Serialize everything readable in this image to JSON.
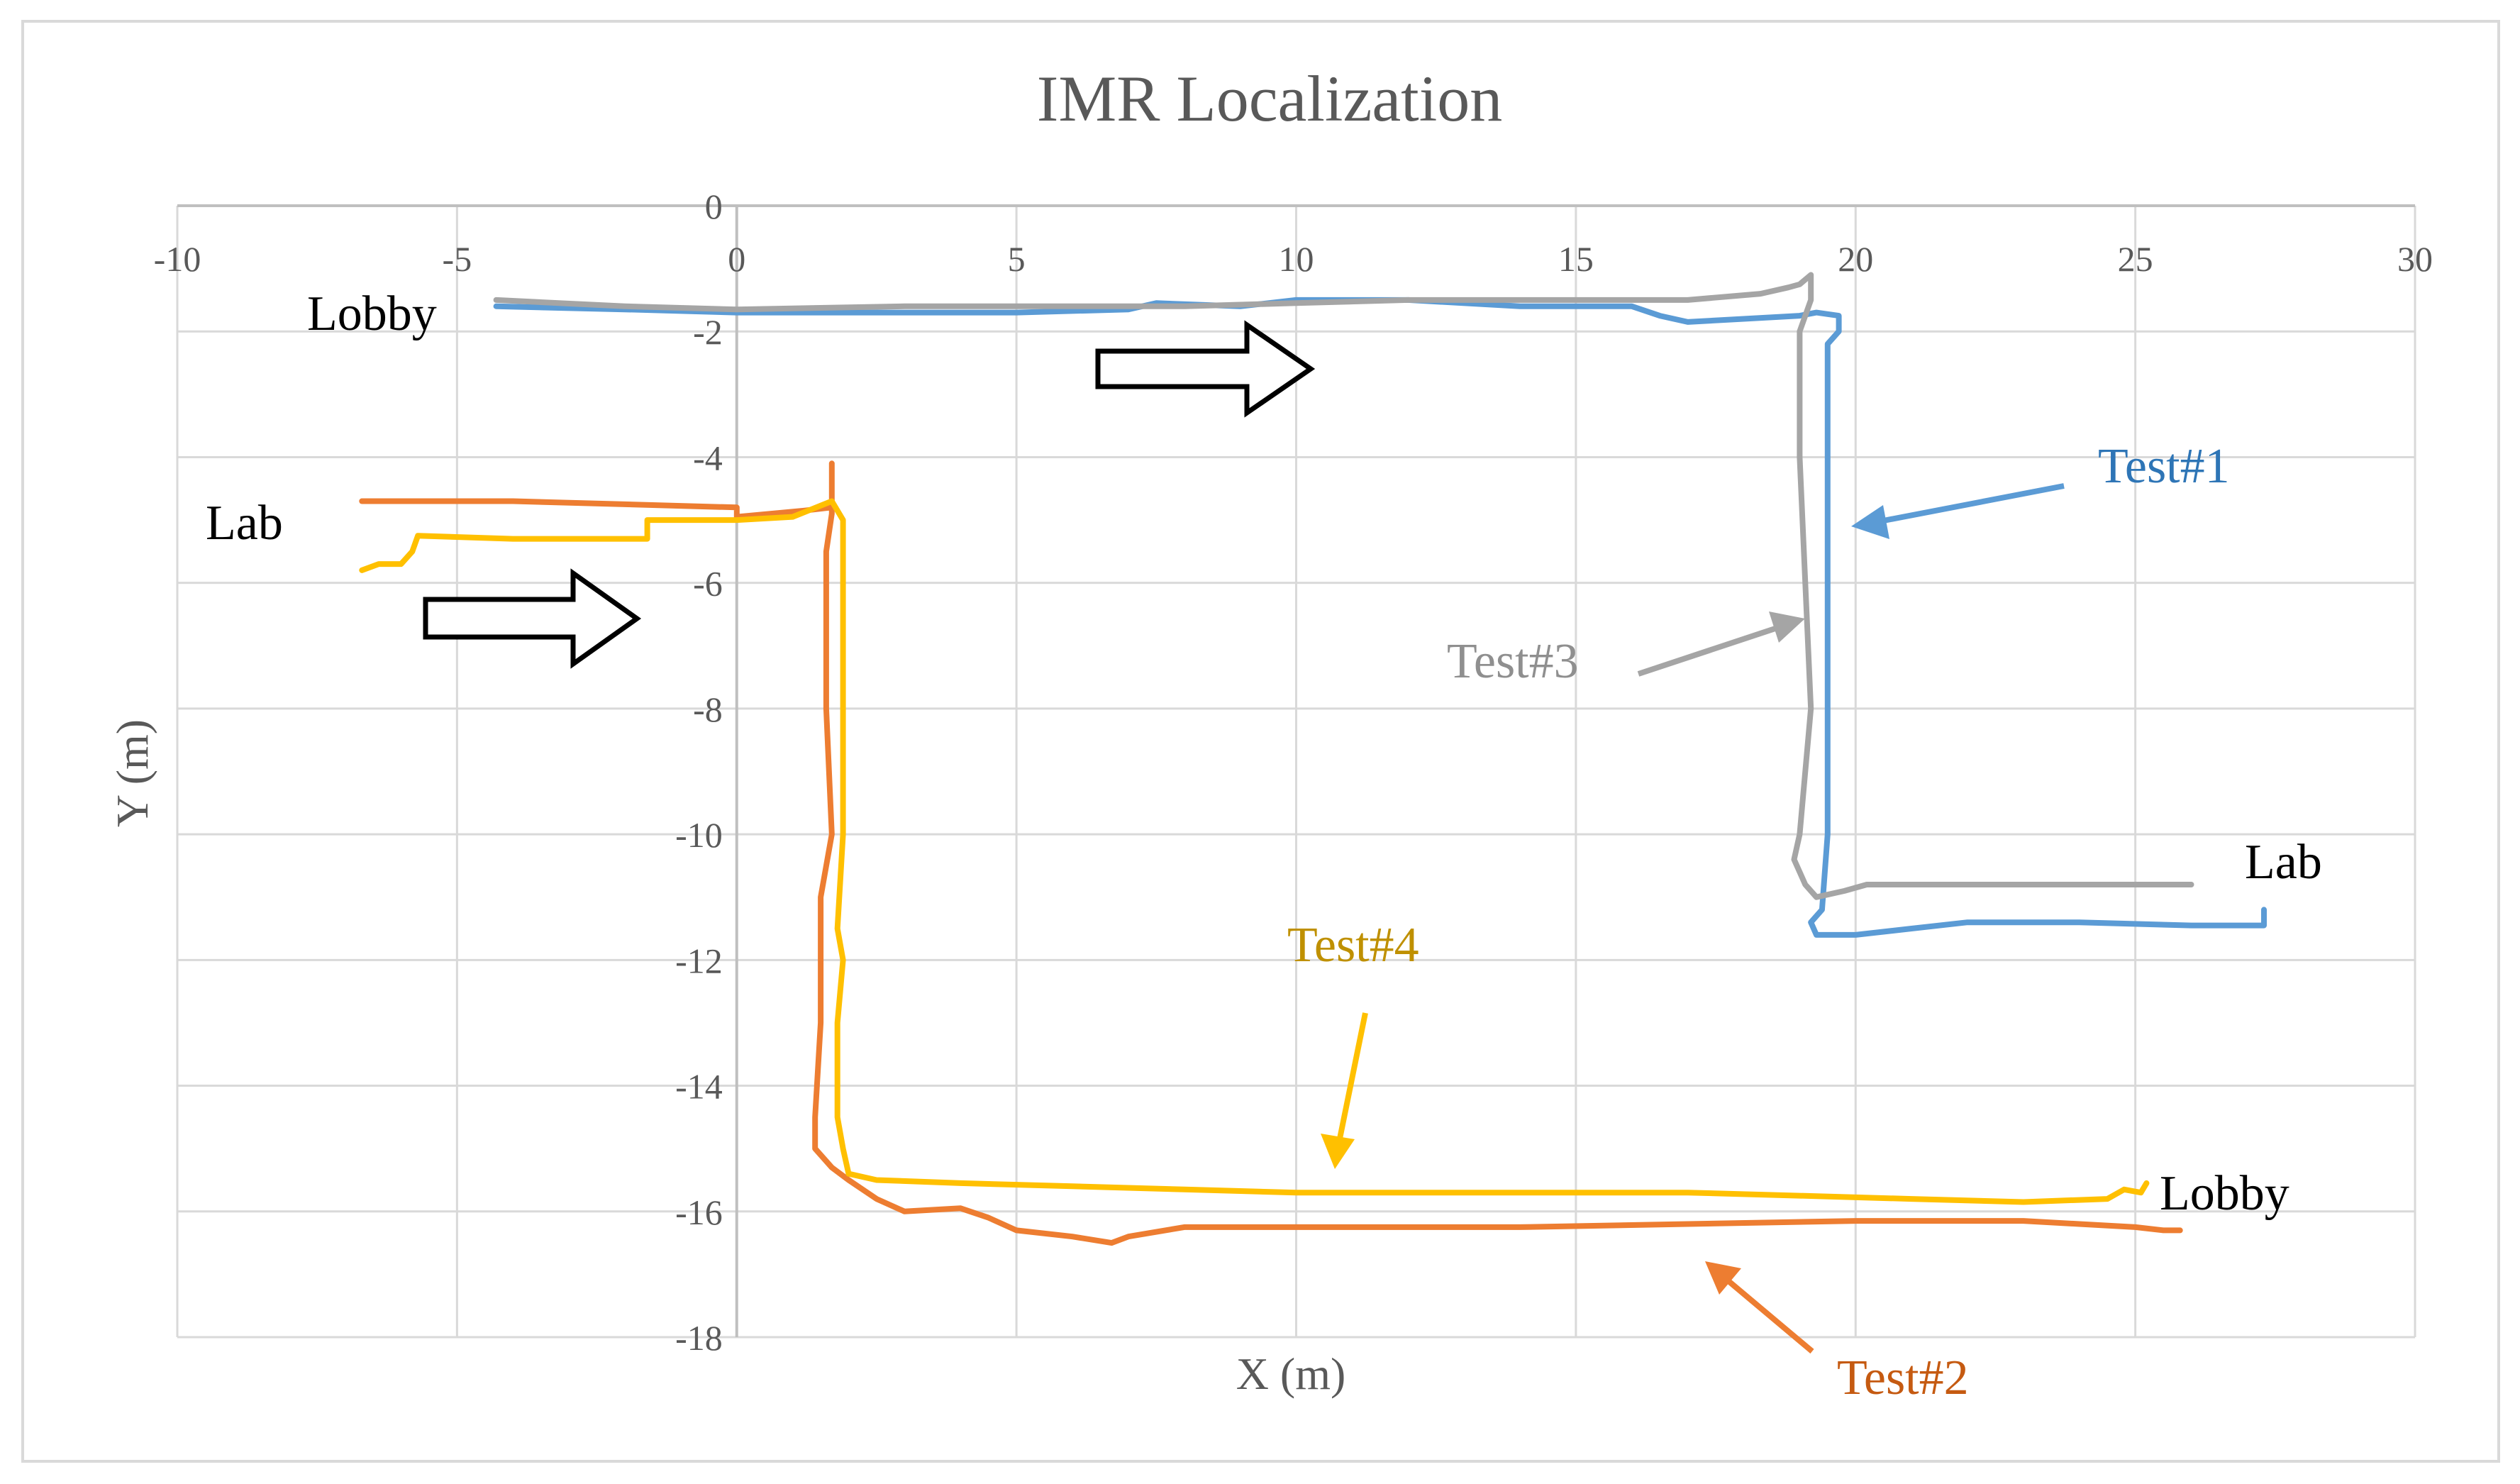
{
  "chart_data": {
    "type": "line",
    "title": "IMR Localization",
    "xlabel": "X (m)",
    "ylabel": "Y (m)",
    "xlim": [
      -10,
      30
    ],
    "ylim": [
      -18,
      0
    ],
    "x_ticks": [
      -10,
      -5,
      0,
      5,
      10,
      15,
      20,
      25,
      30
    ],
    "y_ticks": [
      0,
      -2,
      -4,
      -6,
      -8,
      -10,
      -12,
      -14,
      -16,
      -18
    ],
    "x_tick_labels": [
      "-10",
      "-5",
      "0",
      "5",
      "10",
      "15",
      "20",
      "25",
      "30"
    ],
    "y_tick_labels": [
      "0",
      "-2",
      "-4",
      "-6",
      "-8",
      "-10",
      "-12",
      "-14",
      "-16",
      "-18"
    ],
    "grid": true,
    "legend": "none",
    "series": [
      {
        "name": "Test#1",
        "color": "#5b9bd5",
        "points": [
          [
            -4.3,
            -1.6
          ],
          [
            -2,
            -1.65
          ],
          [
            0,
            -1.7
          ],
          [
            3,
            -1.7
          ],
          [
            5,
            -1.7
          ],
          [
            7,
            -1.65
          ],
          [
            7.5,
            -1.55
          ],
          [
            9,
            -1.6
          ],
          [
            10,
            -1.5
          ],
          [
            12,
            -1.5
          ],
          [
            14,
            -1.6
          ],
          [
            16,
            -1.6
          ],
          [
            16.5,
            -1.75
          ],
          [
            17,
            -1.85
          ],
          [
            18,
            -1.8
          ],
          [
            19,
            -1.75
          ],
          [
            19.3,
            -1.7
          ],
          [
            19.7,
            -1.75
          ],
          [
            19.7,
            -2.0
          ],
          [
            19.5,
            -2.2
          ],
          [
            19.5,
            -4
          ],
          [
            19.5,
            -6
          ],
          [
            19.5,
            -8
          ],
          [
            19.5,
            -10
          ],
          [
            19.4,
            -11.2
          ],
          [
            19.2,
            -11.4
          ],
          [
            19.3,
            -11.6
          ],
          [
            20,
            -11.6
          ],
          [
            21,
            -11.5
          ],
          [
            22,
            -11.4
          ],
          [
            24,
            -11.4
          ],
          [
            26,
            -11.45
          ],
          [
            27.3,
            -11.45
          ],
          [
            27.3,
            -11.2
          ]
        ]
      },
      {
        "name": "Test#2",
        "color": "#ed7d31",
        "points": [
          [
            -6.7,
            -4.7
          ],
          [
            -4,
            -4.7
          ],
          [
            -2,
            -4.75
          ],
          [
            0,
            -4.8
          ],
          [
            0,
            -4.95
          ],
          [
            1.2,
            -4.85
          ],
          [
            1.7,
            -4.8
          ],
          [
            1.7,
            -4.1
          ],
          [
            1.7,
            -4.9
          ],
          [
            1.6,
            -5.5
          ],
          [
            1.6,
            -8
          ],
          [
            1.7,
            -10
          ],
          [
            1.5,
            -11
          ],
          [
            1.5,
            -13
          ],
          [
            1.4,
            -14.5
          ],
          [
            1.4,
            -15
          ],
          [
            1.7,
            -15.3
          ],
          [
            2,
            -15.5
          ],
          [
            2.5,
            -15.8
          ],
          [
            3,
            -16
          ],
          [
            4,
            -15.95
          ],
          [
            4.5,
            -16.1
          ],
          [
            5,
            -16.3
          ],
          [
            6,
            -16.4
          ],
          [
            6.7,
            -16.5
          ],
          [
            7,
            -16.4
          ],
          [
            8,
            -16.25
          ],
          [
            10,
            -16.25
          ],
          [
            14,
            -16.25
          ],
          [
            17,
            -16.2
          ],
          [
            20,
            -16.15
          ],
          [
            23,
            -16.15
          ],
          [
            24,
            -16.2
          ],
          [
            25,
            -16.25
          ],
          [
            25.5,
            -16.3
          ],
          [
            25.8,
            -16.3
          ]
        ]
      },
      {
        "name": "Test#3",
        "color": "#a5a5a5",
        "points": [
          [
            -4.3,
            -1.5
          ],
          [
            -2,
            -1.6
          ],
          [
            0,
            -1.65
          ],
          [
            3,
            -1.6
          ],
          [
            5,
            -1.6
          ],
          [
            7,
            -1.6
          ],
          [
            8,
            -1.6
          ],
          [
            10,
            -1.55
          ],
          [
            12,
            -1.5
          ],
          [
            14,
            -1.5
          ],
          [
            16,
            -1.5
          ],
          [
            17,
            -1.5
          ],
          [
            18.3,
            -1.4
          ],
          [
            18.8,
            -1.3
          ],
          [
            19.0,
            -1.25
          ],
          [
            19.2,
            -1.1
          ],
          [
            19.2,
            -1.5
          ],
          [
            19.0,
            -2
          ],
          [
            19.0,
            -4
          ],
          [
            19.1,
            -6
          ],
          [
            19.2,
            -8
          ],
          [
            19.0,
            -10
          ],
          [
            18.9,
            -10.4
          ],
          [
            19.1,
            -10.8
          ],
          [
            19.3,
            -11.0
          ],
          [
            19.8,
            -10.9
          ],
          [
            20.2,
            -10.8
          ],
          [
            21,
            -10.8
          ],
          [
            22,
            -10.8
          ],
          [
            24,
            -10.8
          ],
          [
            26,
            -10.8
          ]
        ]
      },
      {
        "name": "Test#4",
        "color": "#ffc000",
        "points": [
          [
            -6.7,
            -5.8
          ],
          [
            -6.4,
            -5.7
          ],
          [
            -6.0,
            -5.7
          ],
          [
            -5.8,
            -5.5
          ],
          [
            -5.7,
            -5.25
          ],
          [
            -4,
            -5.3
          ],
          [
            -2,
            -5.3
          ],
          [
            -1.6,
            -5.3
          ],
          [
            -1.6,
            -5.0
          ],
          [
            0,
            -5.0
          ],
          [
            1,
            -4.95
          ],
          [
            1.7,
            -4.7
          ],
          [
            1.9,
            -5
          ],
          [
            1.9,
            -6
          ],
          [
            1.9,
            -8
          ],
          [
            1.9,
            -10
          ],
          [
            1.8,
            -11.5
          ],
          [
            1.9,
            -12
          ],
          [
            1.8,
            -13
          ],
          [
            1.8,
            -14.5
          ],
          [
            1.9,
            -15
          ],
          [
            2.0,
            -15.4
          ],
          [
            2.5,
            -15.5
          ],
          [
            4,
            -15.55
          ],
          [
            6,
            -15.6
          ],
          [
            8,
            -15.65
          ],
          [
            10,
            -15.7
          ],
          [
            14,
            -15.7
          ],
          [
            17,
            -15.7
          ],
          [
            19,
            -15.75
          ],
          [
            21,
            -15.8
          ],
          [
            23,
            -15.85
          ],
          [
            24.5,
            -15.8
          ],
          [
            24.8,
            -15.65
          ],
          [
            25.1,
            -15.7
          ],
          [
            25.2,
            -15.55
          ]
        ]
      }
    ],
    "annotations": [
      {
        "text": "Lobby",
        "color": "#000000"
      },
      {
        "text": "Lab",
        "color": "#000000"
      },
      {
        "text": "Lab",
        "color": "#000000"
      },
      {
        "text": "Lobby",
        "color": "#000000"
      },
      {
        "text": "Test#1",
        "color": "#2e75b6"
      },
      {
        "text": "Test#2",
        "color": "#c55a11"
      },
      {
        "text": "Test#3",
        "color": "#8f8f8f"
      },
      {
        "text": "Test#4",
        "color": "#bf9000"
      }
    ]
  }
}
